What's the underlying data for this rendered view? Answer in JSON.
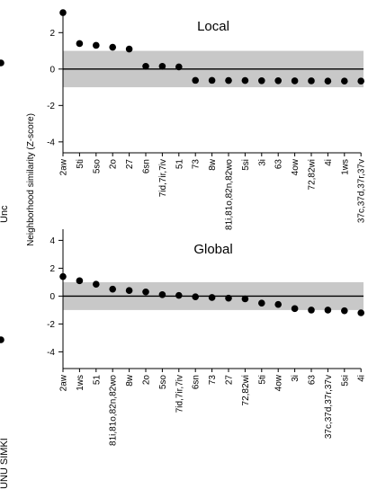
{
  "ylabel": "Neighborhood similarity (Z-score)",
  "cut_labels": {
    "left_top": "Unc",
    "left_bottom": "UNU SIMKI"
  },
  "band": {
    "low": -1,
    "high": 1,
    "color": "#c8c8c8"
  },
  "chart_data": [
    {
      "type": "scatter",
      "title": "Local",
      "ylim": [
        -4.6,
        3.2
      ],
      "yticks": [
        -4,
        -2,
        0,
        2
      ],
      "categories": [
        "2aw",
        "5ti",
        "5so",
        "2o",
        "27",
        "6sn",
        "7id,7ir,7iv",
        "51",
        "73",
        "8w",
        "81i,81o,82n,82wo",
        "5si",
        "3i",
        "63",
        "4ow",
        "72,82wi",
        "4i",
        "1ws",
        "37c,37d,37r,37v"
      ],
      "values": [
        3.1,
        1.4,
        1.3,
        1.2,
        1.1,
        0.15,
        0.15,
        0.12,
        -0.62,
        -0.62,
        -0.63,
        -0.63,
        -0.64,
        -0.64,
        -0.65,
        -0.65,
        -0.66,
        -0.66,
        -0.66
      ]
    },
    {
      "type": "scatter",
      "title": "Global",
      "ylim": [
        -5.2,
        4.8
      ],
      "yticks": [
        -4,
        -2,
        0,
        2,
        4
      ],
      "categories": [
        "2aw",
        "1ws",
        "51",
        "81i,81o,82n,82wo",
        "8w",
        "2o",
        "5so",
        "7id,7ir,7iv",
        "6sn",
        "73",
        "27",
        "72,82wi",
        "5ti",
        "4ow",
        "3i",
        "63",
        "37c,37d,37r,37v",
        "5si",
        "4i"
      ],
      "values": [
        1.4,
        1.1,
        0.85,
        0.5,
        0.4,
        0.3,
        0.1,
        0.05,
        -0.05,
        -0.1,
        -0.15,
        -0.2,
        -0.5,
        -0.6,
        -0.9,
        -1.0,
        -1.0,
        -1.05,
        -1.2
      ]
    }
  ]
}
